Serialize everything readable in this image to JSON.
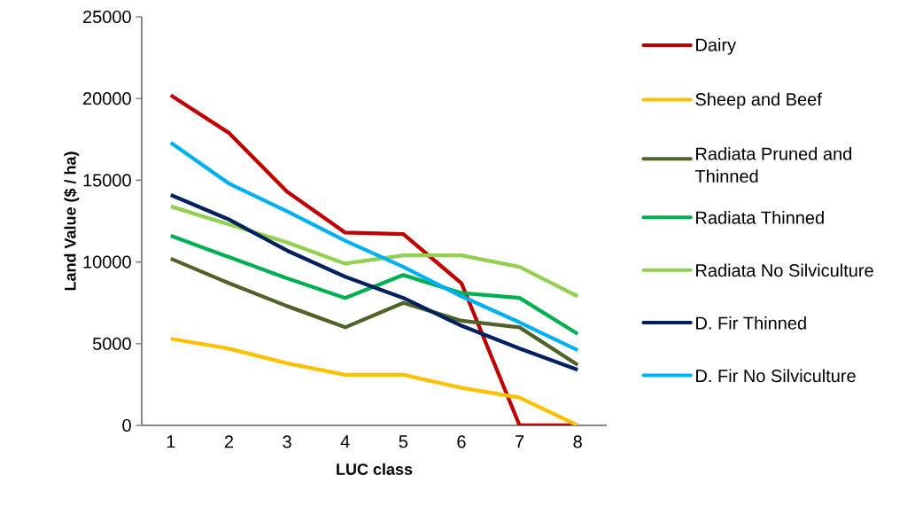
{
  "chart_data": {
    "type": "line",
    "xlabel": "LUC class",
    "ylabel": "Land Value ($ / ha)",
    "categories": [
      "1",
      "2",
      "3",
      "4",
      "5",
      "6",
      "7",
      "8"
    ],
    "series": [
      {
        "name": "Dairy",
        "color": "#c00000",
        "values": [
          20200,
          17900,
          14300,
          11800,
          11700,
          8700,
          0,
          0
        ]
      },
      {
        "name": "Sheep and Beef",
        "color": "#ffc000",
        "values": [
          5300,
          4700,
          3800,
          3100,
          3100,
          2300,
          1700,
          0
        ]
      },
      {
        "name": "Radiata Pruned and Thinned",
        "color": "#4f6228",
        "values": [
          10200,
          8700,
          7300,
          6000,
          7500,
          6400,
          6000,
          3700
        ]
      },
      {
        "name": "Radiata Thinned",
        "color": "#00b050",
        "values": [
          11600,
          10300,
          9000,
          7800,
          9200,
          8100,
          7800,
          5600
        ]
      },
      {
        "name": "Radiata No Silviculture",
        "color": "#92d050",
        "values": [
          13400,
          12300,
          11200,
          9900,
          10400,
          10400,
          9700,
          7900
        ]
      },
      {
        "name": "D. Fir Thinned",
        "color": "#002060",
        "values": [
          14100,
          12600,
          10700,
          9100,
          7800,
          6100,
          4700,
          3400
        ]
      },
      {
        "name": "D. Fir No Silviculture",
        "color": "#00b0f0",
        "values": [
          17300,
          14800,
          13100,
          11300,
          9700,
          7900,
          6300,
          4600
        ]
      }
    ],
    "ylim": [
      0,
      25000
    ],
    "yticks": [
      0,
      5000,
      10000,
      15000,
      20000,
      25000
    ],
    "grid": false,
    "legend": "right",
    "marker": "none",
    "line_style": "solid"
  }
}
